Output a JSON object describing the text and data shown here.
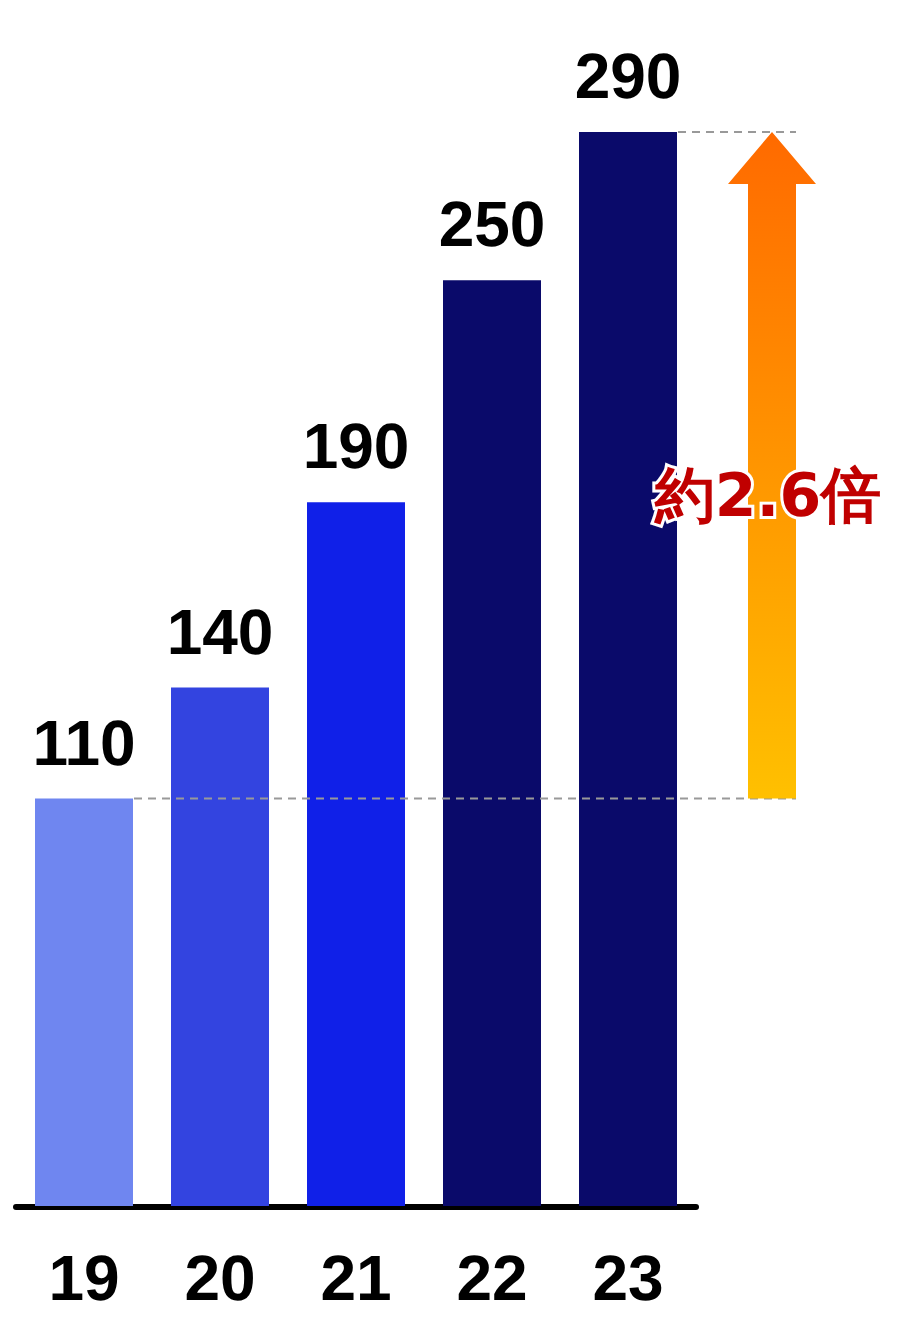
{
  "chart_data": {
    "type": "bar",
    "categories": [
      "19",
      "20",
      "21",
      "22",
      "23"
    ],
    "values": [
      110,
      140,
      190,
      250,
      290
    ],
    "colors": [
      "#6f86f0",
      "#3344e0",
      "#1020e8",
      "#0a0a6a",
      "#0a0a6a"
    ],
    "data_labels": true,
    "grid": false,
    "ref_lines": [
      {
        "axis": "y",
        "value": 110,
        "color": "#999999",
        "line_style": "dashed"
      },
      {
        "axis": "y",
        "value": 290,
        "color": "#999999",
        "line_style": "dashed"
      }
    ],
    "annotations": [
      "約2.6倍"
    ]
  }
}
